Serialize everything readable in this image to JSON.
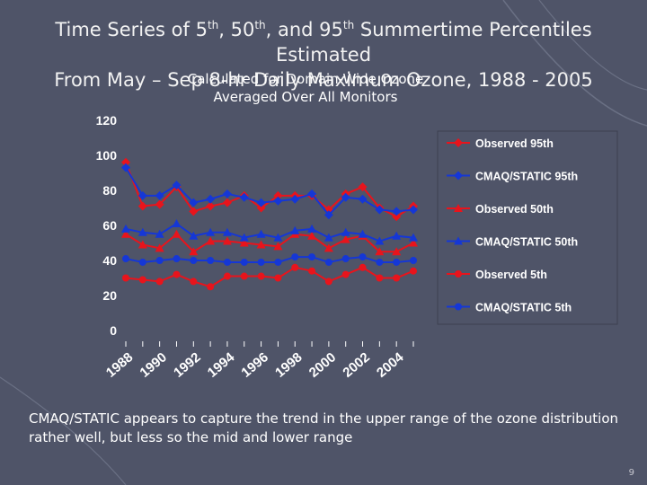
{
  "slide": {
    "title_line1_a": "Time Series of 5",
    "title_line1_sup1": "th",
    "title_line1_b": ", 50",
    "title_line1_sup2": "th",
    "title_line1_c": ", and 95",
    "title_line1_sup3": "th",
    "title_line1_d": " Summertime Percentiles Estimated",
    "title_line2": "From May – Sep 8-hr Daily Maximum Ozone, 1988 - 2005",
    "subtitle_line1": "Calculated for Domain-Wide Ozone",
    "subtitle_line2": "Averaged Over All Monitors",
    "caption": "CMAQ/STATIC appears to capture the trend in the upper range of the ozone distribution rather well, but less so the mid and lower range",
    "page_number": "9"
  },
  "chart_data": {
    "type": "line",
    "x": [
      1988,
      1989,
      1990,
      1991,
      1992,
      1993,
      1994,
      1995,
      1996,
      1997,
      1998,
      1999,
      2000,
      2001,
      2002,
      2003,
      2004,
      2005
    ],
    "xtick_labels": [
      "1988",
      "1990",
      "1992",
      "1994",
      "1996",
      "1998",
      "2000",
      "2002",
      "2004"
    ],
    "xtick_years": [
      1988,
      1990,
      1992,
      1994,
      1996,
      1998,
      2000,
      2002,
      2004
    ],
    "ylim": [
      0,
      120
    ],
    "yticks": [
      0,
      20,
      40,
      60,
      80,
      100,
      120
    ],
    "grid": false,
    "legend_position": "right",
    "series": [
      {
        "name": "Observed 95th",
        "color": "#e8141c",
        "marker": "diamond",
        "values": [
          96,
          71,
          72,
          82,
          68,
          71,
          73,
          77,
          70,
          77,
          77,
          77,
          69,
          78,
          82,
          70,
          65,
          71
        ]
      },
      {
        "name": "CMAQ/STATIC 95th",
        "color": "#1537d6",
        "marker": "diamond",
        "values": [
          93,
          77,
          77,
          83,
          73,
          75,
          78,
          76,
          73,
          74,
          75,
          78,
          66,
          76,
          75,
          69,
          68,
          69
        ]
      },
      {
        "name": "Observed 50th",
        "color": "#e8141c",
        "marker": "triangle",
        "values": [
          55,
          49,
          47,
          55,
          45,
          51,
          51,
          50,
          49,
          48,
          55,
          54,
          47,
          52,
          54,
          45,
          45,
          50
        ]
      },
      {
        "name": "CMAQ/STATIC 50th",
        "color": "#1537d6",
        "marker": "triangle",
        "values": [
          58,
          56,
          55,
          61,
          54,
          56,
          56,
          53,
          55,
          53,
          57,
          58,
          53,
          56,
          55,
          51,
          54,
          53
        ]
      },
      {
        "name": "Observed 5th",
        "color": "#e8141c",
        "marker": "circle",
        "values": [
          30,
          29,
          28,
          32,
          28,
          25,
          31,
          31,
          31,
          30,
          36,
          34,
          28,
          32,
          36,
          30,
          30,
          34
        ]
      },
      {
        "name": "CMAQ/STATIC 5th",
        "color": "#1537d6",
        "marker": "circle",
        "values": [
          41,
          39,
          40,
          41,
          40,
          40,
          39,
          39,
          39,
          39,
          42,
          42,
          39,
          41,
          42,
          39,
          39,
          40
        ]
      }
    ]
  }
}
